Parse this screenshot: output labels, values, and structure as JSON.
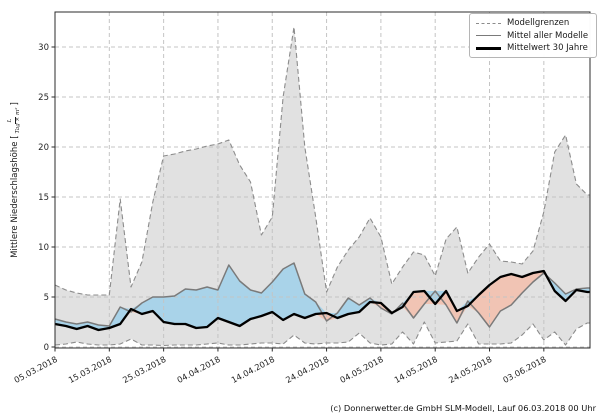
{
  "chart": {
    "y_axis": {
      "label_prefix": "Mittlere Niederschlagshöhe [",
      "label_suffix": "]",
      "unit_numerator": "L",
      "unit_denominator": "Tag × m²",
      "ticks": [
        0,
        5,
        10,
        15,
        20,
        25,
        30
      ]
    },
    "x_axis": {
      "tick_labels": [
        "05.03.2018",
        "15.03.2018",
        "25.03.2018",
        "04.04.2018",
        "14.04.2018",
        "24.04.2018",
        "04.05.2018",
        "14.05.2018",
        "24.05.2018",
        "03.06.2018"
      ]
    },
    "legend": [
      {
        "label": "Modellgrenzen",
        "style": "dashed-gray"
      },
      {
        "label": "Mittel aller Modelle",
        "style": "solid-gray"
      },
      {
        "label": "Mittelwert 30 Jahre",
        "style": "solid-black"
      }
    ],
    "caption": "(c) Donnerwetter.de GmbH SLM-Modell, Lauf 06.03.2018 00 Uhr"
  },
  "chart_data": {
    "type": "line",
    "title": "",
    "xlabel": "",
    "ylabel": "Mittlere Niederschlagshöhe [L/(Tag × m²)]",
    "x_unit": "Tage seit 05.03.2018",
    "x_max": 98.5,
    "ylim": [
      0,
      33.5
    ],
    "grid": true,
    "legend_position": "top-right",
    "x": [
      0,
      2,
      4,
      6,
      8,
      10,
      12,
      14,
      16,
      18,
      20,
      22,
      24,
      26,
      28,
      30,
      32,
      34,
      36,
      38,
      40,
      42,
      44,
      46,
      48,
      50,
      52,
      54,
      56,
      58,
      60,
      62,
      64,
      66,
      68,
      70,
      72,
      74,
      76,
      78,
      80,
      82,
      84,
      86,
      88,
      90,
      92,
      94,
      96,
      98
    ],
    "x_tick_days": [
      0,
      10,
      20,
      30,
      40,
      50,
      60,
      70,
      80,
      90
    ],
    "series": [
      {
        "name": "Modellgrenzen (obere Grenze)",
        "values": [
          6.2,
          5.7,
          5.4,
          5.2,
          5.2,
          5.2,
          14.8,
          6.0,
          8.5,
          14.5,
          19.1,
          19.3,
          19.6,
          19.8,
          20.1,
          20.3,
          20.7,
          18.2,
          16.5,
          11.2,
          13.0,
          25.0,
          32.0,
          20.0,
          13.0,
          5.5,
          8.0,
          9.7,
          11.0,
          12.9,
          11.0,
          6.3,
          8.0,
          9.5,
          9.2,
          7.1,
          10.8,
          12.0,
          7.4,
          9.0,
          10.3,
          8.6,
          8.5,
          8.3,
          9.6,
          13.5,
          19.5,
          21.2,
          16.3,
          15.2
        ]
      },
      {
        "name": "Modellgrenzen (untere Grenze)",
        "values": [
          0.2,
          0.3,
          0.5,
          0.3,
          0.2,
          0.2,
          0.3,
          0.8,
          0.2,
          0.2,
          0.15,
          0.2,
          0.2,
          0.2,
          0.3,
          0.4,
          0.2,
          0.2,
          0.3,
          0.4,
          0.4,
          0.3,
          1.2,
          0.4,
          0.3,
          0.4,
          0.4,
          0.5,
          1.4,
          0.4,
          0.2,
          0.3,
          1.5,
          0.3,
          2.5,
          0.4,
          0.5,
          0.6,
          2.3,
          0.3,
          0.3,
          0.3,
          0.4,
          1.2,
          2.3,
          0.7,
          1.5,
          0.2,
          1.8,
          2.4
        ]
      },
      {
        "name": "Mittel aller Modelle",
        "values": [
          2.8,
          2.5,
          2.3,
          2.5,
          2.2,
          2.1,
          4.0,
          3.5,
          4.4,
          5.0,
          5.0,
          5.1,
          5.8,
          5.7,
          6.0,
          5.7,
          8.2,
          6.6,
          5.7,
          5.4,
          6.5,
          7.8,
          8.4,
          5.3,
          4.5,
          2.6,
          3.4,
          4.9,
          4.2,
          4.9,
          3.9,
          3.3,
          4.4,
          2.9,
          4.3,
          5.6,
          4.2,
          2.4,
          4.6,
          3.4,
          2.0,
          3.6,
          4.2,
          5.4,
          6.5,
          7.4,
          6.4,
          5.3,
          5.8,
          5.9
        ]
      },
      {
        "name": "Mittelwert 30 Jahre",
        "values": [
          2.3,
          2.1,
          1.8,
          2.1,
          1.7,
          1.9,
          2.3,
          3.8,
          3.3,
          3.6,
          2.5,
          2.3,
          2.3,
          1.9,
          2.0,
          2.9,
          2.5,
          2.1,
          2.8,
          3.1,
          3.5,
          2.7,
          3.3,
          2.9,
          3.3,
          3.4,
          2.9,
          3.3,
          3.5,
          4.5,
          4.4,
          3.4,
          4.0,
          5.5,
          5.6,
          4.3,
          5.6,
          3.6,
          4.1,
          5.2,
          6.2,
          7.0,
          7.3,
          7.0,
          7.4,
          7.6,
          5.6,
          4.6,
          5.7,
          5.5
        ]
      }
    ],
    "colors": {
      "band": "#e1e1e1",
      "bound_dash": "#8c8c8c",
      "above_normal_fill": "#a9d3e9",
      "below_normal_fill": "#f1c4b4",
      "model_mean_line": "#7a7a7a",
      "climate_mean_line": "#000000",
      "grid": "#c4c4c4",
      "frame": "#2b2b2b"
    }
  }
}
